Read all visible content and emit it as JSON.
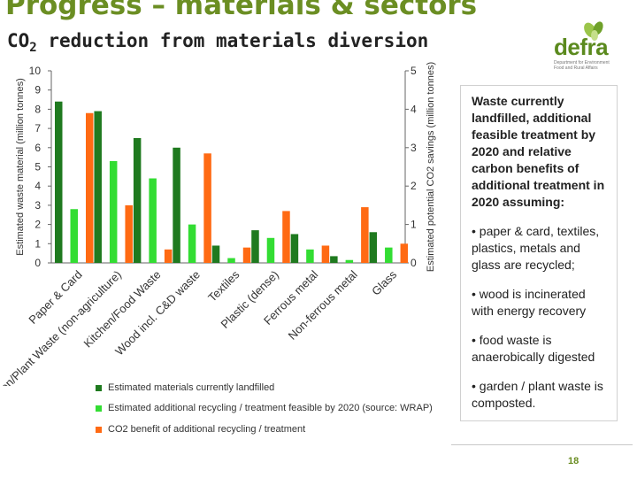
{
  "slide": {
    "title": "Progress – materials & sectors",
    "subtitle_prefix": "CO",
    "subtitle_sub": "2",
    "subtitle_suffix": " reduction from materials diversion",
    "page_number": "18"
  },
  "logo": {
    "word": "defra",
    "tagline": "Department for Environment Food and Rural Affairs"
  },
  "textbox": {
    "lead": "Waste currently landfilled, additional feasible treatment by 2020 and relative carbon benefits of additional treatment in 2020 assuming:",
    "bullets": [
      "• paper & card, textiles, plastics, metals and glass are recycled;",
      "• wood is incinerated with energy recovery",
      "• food waste is anaerobically digested",
      "• garden / plant waste is composted."
    ]
  },
  "colors": {
    "title": "#6b8e23",
    "series1": "#1f7a1f",
    "series2": "#33dd33",
    "series3": "#ff6a13"
  },
  "chart_data": {
    "type": "bar",
    "categories": [
      "Paper & Card",
      "Garden/Plant Waste (non-agriculture)",
      "Kitchen/Food Waste",
      "Wood incl. C&D waste",
      "Textiles",
      "Plastic (dense)",
      "Ferrous metal",
      "Non-ferrous metal",
      "Glass"
    ],
    "series": [
      {
        "name": "Estimated materials currently landfilled",
        "axis": "left",
        "values": [
          8.4,
          7.9,
          6.5,
          6.0,
          0.9,
          1.7,
          1.5,
          0.35,
          1.6
        ]
      },
      {
        "name": "Estimated additional recycling / treatment feasible by 2020 (source: WRAP)",
        "axis": "left",
        "values": [
          2.8,
          5.3,
          4.4,
          2.0,
          0.25,
          1.3,
          0.7,
          0.15,
          0.8
        ]
      },
      {
        "name": "CO2 benefit of additional recycling / treatment",
        "axis": "right",
        "values": [
          3.9,
          1.5,
          0.35,
          2.85,
          0.4,
          1.35,
          0.45,
          1.45,
          0.5
        ]
      }
    ],
    "ylabel": "Estimated waste material (million tonnes)",
    "y2label": "Estimated potential CO2 savings (million tonnes)",
    "ylim": [
      0,
      10
    ],
    "y2lim": [
      0,
      5
    ],
    "yticks": [
      "0",
      "1",
      "2",
      "3",
      "4",
      "5",
      "6",
      "7",
      "8",
      "9",
      "10"
    ],
    "y2ticks": [
      "0",
      "1",
      "2",
      "3",
      "4",
      "5"
    ],
    "legend_position": "bottom"
  }
}
